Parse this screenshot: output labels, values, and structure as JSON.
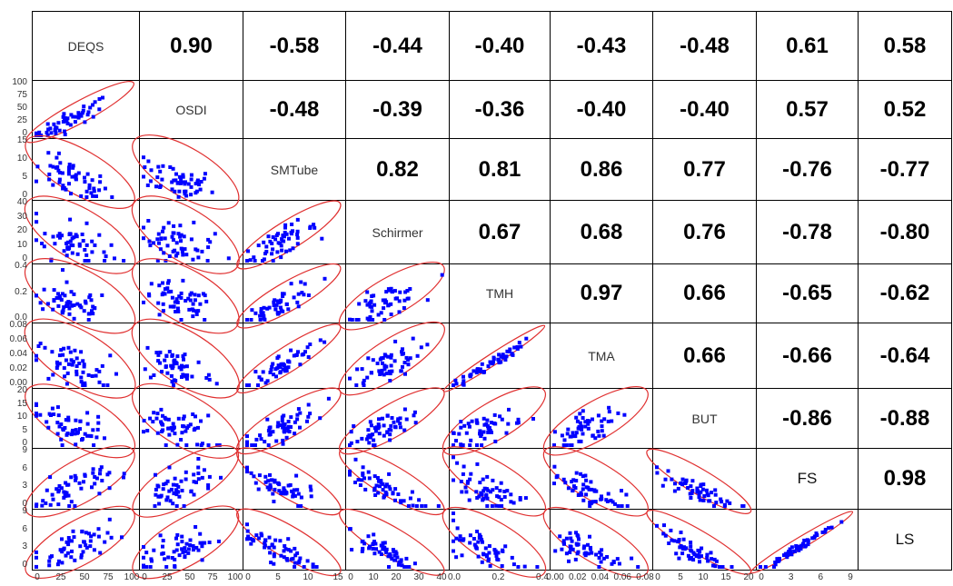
{
  "chart_data": {
    "type": "scatter",
    "variables": [
      "DEQS",
      "OSDI",
      "SMTube",
      "Schirmer",
      "TMH",
      "TMA",
      "BUT",
      "FS",
      "LS"
    ],
    "label_style": [
      "plain",
      "plain",
      "plain",
      "plain",
      "plain",
      "plain",
      "plain",
      "bold",
      "bold"
    ],
    "correlations": [
      [
        null,
        "0.90",
        "-0.58",
        "-0.44",
        "-0.40",
        "-0.43",
        "-0.48",
        "0.61",
        "0.58"
      ],
      [
        null,
        null,
        "-0.48",
        "-0.39",
        "-0.36",
        "-0.40",
        "-0.40",
        "0.57",
        "0.52"
      ],
      [
        null,
        null,
        null,
        "0.82",
        "0.81",
        "0.86",
        "0.77",
        "-0.76",
        "-0.77"
      ],
      [
        null,
        null,
        null,
        null,
        "0.67",
        "0.68",
        "0.76",
        "-0.78",
        "-0.80"
      ],
      [
        null,
        null,
        null,
        null,
        null,
        "0.97",
        "0.66",
        "-0.65",
        "-0.62"
      ],
      [
        null,
        null,
        null,
        null,
        null,
        null,
        "0.66",
        "-0.66",
        "-0.64"
      ],
      [
        null,
        null,
        null,
        null,
        null,
        null,
        null,
        "-0.86",
        "-0.88"
      ],
      [
        null,
        null,
        null,
        null,
        null,
        null,
        null,
        null,
        "0.98"
      ],
      [
        null,
        null,
        null,
        null,
        null,
        null,
        null,
        null,
        null
      ]
    ],
    "axis_ranges": {
      "DEQS": [
        0,
        100
      ],
      "OSDI": [
        0,
        100
      ],
      "SMTube": [
        0,
        15
      ],
      "Schirmer": [
        0,
        40
      ],
      "TMH": [
        0,
        0.5
      ],
      "TMA": [
        0,
        0.08
      ],
      "BUT": [
        0,
        20
      ],
      "FS": [
        0,
        9.5
      ],
      "LS": [
        0,
        9.5
      ]
    },
    "y_ticks": [
      null,
      [
        "100",
        "75",
        "50",
        "25",
        "0"
      ],
      [
        "15",
        "10",
        "5",
        "0"
      ],
      [
        "40",
        "30",
        "20",
        "10",
        "0"
      ],
      [
        "0.4",
        "0.2",
        "0.0"
      ],
      [
        "0.08",
        "0.06",
        "0.04",
        "0.02",
        "0.00"
      ],
      [
        "20",
        "15",
        "10",
        "5",
        "0"
      ],
      [
        "9",
        "6",
        "3",
        "0"
      ],
      [
        "9",
        "6",
        "3",
        "0"
      ]
    ],
    "x_ticks": [
      [
        "0",
        "25",
        "50",
        "75",
        "100"
      ],
      [
        "0",
        "25",
        "50",
        "75",
        "100"
      ],
      [
        "0",
        "5",
        "10",
        "15"
      ],
      [
        "0",
        "10",
        "20",
        "30",
        "40"
      ],
      [
        "0.0",
        "0.2",
        "0.4"
      ],
      [
        "0.00",
        "0.02",
        "0.04",
        "0.06",
        "0.08"
      ],
      [
        "0",
        "5",
        "10",
        "15",
        "20"
      ],
      [
        "0",
        "3",
        "6",
        "9"
      ],
      []
    ],
    "point_color": "#0000ff",
    "ellipse_color": "#e03030",
    "grid": false,
    "legend": "none"
  }
}
